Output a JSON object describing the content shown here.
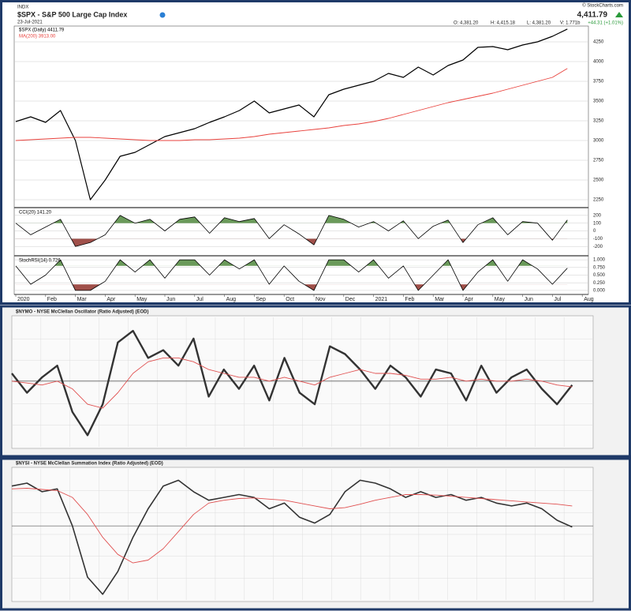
{
  "chart_data": [
    {
      "type": "line",
      "exchange": "INDX",
      "title": "$SPX - S&P 500 Large Cap Index",
      "date": "23-Jul-2021",
      "source": "© StockCharts.com",
      "last": "4,411.79",
      "change": "+44.31 (+1.01%)",
      "ohlcv": [
        "O: 4,381.20",
        "H: 4,415.18",
        "L: 4,381.20",
        "V: 1.771b"
      ],
      "categories": [
        "2020",
        null,
        "Feb",
        null,
        "Mar",
        null,
        "Apr",
        null,
        "May",
        null,
        "Jun",
        null,
        "Jul",
        null,
        "Aug",
        null,
        "Sep",
        null,
        "Oct",
        null,
        "Nov",
        null,
        "Dec",
        null,
        "2021",
        null,
        "Feb",
        null,
        "Mar",
        null,
        "Apr",
        null,
        "May",
        null,
        "Jun",
        null,
        "Jul",
        null,
        "Aug",
        null
      ],
      "series": [
        {
          "name": "$SPX (Daily) 4411.79",
          "color": "#000000",
          "values": [
            3240,
            3300,
            3230,
            3380,
            3000,
            2250,
            2500,
            2800,
            2850,
            2950,
            3050,
            3100,
            3150,
            3230,
            3300,
            3380,
            3500,
            3350,
            3400,
            3450,
            3300,
            3580,
            3650,
            3700,
            3750,
            3850,
            3800,
            3930,
            3830,
            3950,
            4020,
            4180,
            4190,
            4150,
            4210,
            4250,
            4320,
            4411.79,
            null,
            null
          ]
        },
        {
          "name": "MA(200) 3913.00",
          "color": "#e8413c",
          "values": [
            3000,
            3010,
            3020,
            3030,
            3040,
            3040,
            3030,
            3020,
            3010,
            3000,
            3000,
            3000,
            3010,
            3010,
            3020,
            3030,
            3050,
            3080,
            3100,
            3120,
            3140,
            3160,
            3190,
            3210,
            3240,
            3280,
            3330,
            3380,
            3430,
            3480,
            3520,
            3560,
            3600,
            3650,
            3700,
            3750,
            3800,
            3913,
            null,
            null
          ]
        }
      ],
      "ylim": [
        2160,
        4440
      ],
      "yticks": [
        4250,
        4000,
        3750,
        3500,
        3250,
        3000,
        2750,
        2500,
        2250
      ]
    },
    {
      "type": "line",
      "series": [
        {
          "name": "CCI(20) 141.20",
          "color": "#000000",
          "values": [
            100,
            -50,
            50,
            150,
            -200,
            -150,
            -50,
            200,
            100,
            150,
            0,
            150,
            180,
            -30,
            170,
            120,
            160,
            -100,
            80,
            -40,
            -180,
            200,
            150,
            50,
            120,
            0,
            130,
            -100,
            60,
            140,
            -150,
            80,
            170,
            -50,
            120,
            100,
            -120,
            141.2,
            null,
            null
          ]
        }
      ],
      "ylim": [
        -300,
        280
      ],
      "yticks": [
        200,
        100,
        0,
        -100,
        -200
      ],
      "fill_above": 100,
      "fill_below": -100,
      "up_color": "#6a9a5a",
      "down_color": "#a0504a"
    },
    {
      "type": "line",
      "series": [
        {
          "name": "StochRSI(14) 0.726",
          "color": "#000000",
          "values": [
            0.8,
            0.2,
            0.5,
            1,
            0,
            0,
            0.3,
            1,
            0.6,
            1,
            0.4,
            1,
            1,
            0.5,
            1,
            0.7,
            1,
            0.2,
            0.8,
            0.3,
            0,
            1,
            1,
            0.6,
            1,
            0.4,
            0.8,
            0,
            0.5,
            1,
            0,
            0.6,
            1,
            0.3,
            1,
            0.7,
            0.2,
            0.726,
            null,
            null
          ]
        }
      ],
      "ylim": [
        -0.08,
        1.08
      ],
      "yticks": [
        {
          "value": 1,
          "label": "1.000"
        },
        {
          "value": 0.75,
          "label": "0.750"
        },
        {
          "value": 0.5,
          "label": "0.500"
        },
        {
          "value": 0.25,
          "label": "0.250"
        },
        {
          "value": 0,
          "label": "0.000"
        }
      ],
      "fill_above": 0.8,
      "fill_below": 0.2,
      "up_color": "#6a9a5a",
      "down_color": "#a0504a"
    },
    {
      "type": "line",
      "title": "$NYMO - NYSE McClellan Oscillator (Ratio Adjusted) (EOD)",
      "series": [
        {
          "color": "#333333",
          "values": [
            20,
            -30,
            10,
            40,
            -80,
            -140,
            -60,
            100,
            130,
            60,
            80,
            40,
            110,
            -40,
            30,
            -20,
            40,
            -50,
            60,
            -30,
            -60,
            90,
            70,
            30,
            -20,
            40,
            10,
            -40,
            30,
            20,
            -50,
            40,
            -30,
            10,
            30,
            -20,
            -60,
            -10
          ]
        },
        {
          "color": "#e05050",
          "values": [
            0,
            -5,
            -10,
            0,
            -20,
            -60,
            -70,
            -30,
            20,
            50,
            60,
            60,
            50,
            30,
            20,
            10,
            10,
            0,
            10,
            0,
            -10,
            10,
            20,
            30,
            20,
            20,
            15,
            5,
            5,
            10,
            0,
            5,
            0,
            0,
            5,
            0,
            -10,
            -15
          ]
        }
      ],
      "ylim": [
        -170,
        165
      ]
    },
    {
      "type": "line",
      "title": "$NYSI - NYSE McClellan Summation Index (Ratio Adjusted) (EOD)",
      "series": [
        {
          "color": "#333333",
          "values": [
            700,
            750,
            600,
            650,
            0,
            -900,
            -1200,
            -800,
            -200,
            300,
            700,
            800,
            600,
            450,
            500,
            550,
            500,
            300,
            400,
            150,
            50,
            200,
            600,
            800,
            750,
            650,
            500,
            600,
            500,
            550,
            450,
            500,
            400,
            350,
            400,
            300,
            100,
            -20
          ]
        },
        {
          "color": "#e05050",
          "values": [
            650,
            660,
            640,
            620,
            500,
            200,
            -200,
            -500,
            -650,
            -600,
            -400,
            -100,
            200,
            400,
            450,
            480,
            490,
            470,
            450,
            400,
            350,
            300,
            320,
            380,
            450,
            500,
            550,
            550,
            540,
            520,
            500,
            480,
            460,
            440,
            420,
            400,
            380,
            350
          ]
        }
      ],
      "ylim": [
        -1300,
        1000
      ]
    }
  ]
}
